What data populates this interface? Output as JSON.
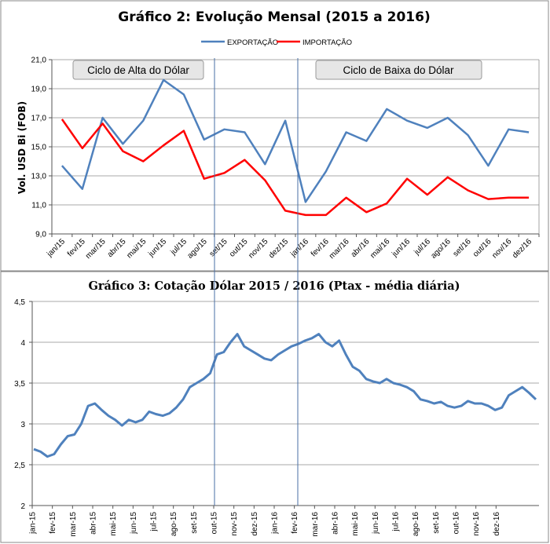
{
  "chart_data": [
    {
      "type": "line",
      "title": "Gráfico 2: Evolução Mensal (2015 a 2016)",
      "ylabel": "Vol. USD Bi (FOB)",
      "ylim": [
        9,
        21
      ],
      "yticks": [
        "9,0",
        "11,0",
        "13,0",
        "15,0",
        "17,0",
        "19,0",
        "21,0"
      ],
      "categories": [
        "jan/15",
        "fev/15",
        "mar/15",
        "abr/15",
        "mai/15",
        "jun/15",
        "jul/15",
        "ago/15",
        "set/15",
        "out/15",
        "nov/15",
        "dez/15",
        "jan/16",
        "fev/16",
        "mar/16",
        "abr/16",
        "mai/16",
        "jun/16",
        "jul/16",
        "ago/16",
        "set/16",
        "out/16",
        "nov/16",
        "dez/16"
      ],
      "series": [
        {
          "name": "EXPORTAÇÃO",
          "color": "#4f81bd",
          "values": [
            13.7,
            12.1,
            17.0,
            15.2,
            16.8,
            19.6,
            18.6,
            15.5,
            16.2,
            16.0,
            13.8,
            16.8,
            11.2,
            13.3,
            16.0,
            15.4,
            17.6,
            16.8,
            16.3,
            17.0,
            15.8,
            13.7,
            16.2,
            16.0
          ]
        },
        {
          "name": "IMPORTAÇÃO",
          "color": "#ff0000",
          "values": [
            16.9,
            14.9,
            16.6,
            14.7,
            14.0,
            15.1,
            16.1,
            12.8,
            13.2,
            14.1,
            12.7,
            10.6,
            10.3,
            10.3,
            11.5,
            10.5,
            11.1,
            12.8,
            11.7,
            12.9,
            12.0,
            11.4,
            11.5,
            11.5
          ]
        }
      ],
      "annotations": [
        "Ciclo de Alta do Dólar",
        "Ciclo de Baixa do Dólar"
      ],
      "legend": "top-center",
      "grid": true
    },
    {
      "type": "line",
      "title": "Gráfico 3: Cotação Dólar 2015 / 2016 (Ptax - média diária)",
      "ylim": [
        2,
        4.5
      ],
      "yticks": [
        "2",
        "2,5",
        "3",
        "3,5",
        "4",
        "4,5"
      ],
      "x_labels": [
        "jan-15",
        "fev-15",
        "mar-15",
        "abr-15",
        "mai-15",
        "jun-15",
        "jul-15",
        "ago-15",
        "set-15",
        "out-15",
        "nov-15",
        "dez-15",
        "jan-16",
        "fev-16",
        "mar-16",
        "abr-16",
        "mai-16",
        "jun-16",
        "jul-16",
        "ago-16",
        "set-16",
        "out-16",
        "nov-16",
        "dez-16"
      ],
      "series": [
        {
          "name": "",
          "color": "#4f81bd",
          "values": [
            2.69,
            2.66,
            2.6,
            2.63,
            2.75,
            2.85,
            2.87,
            3.0,
            3.22,
            3.25,
            3.17,
            3.1,
            3.05,
            2.98,
            3.05,
            3.02,
            3.05,
            3.15,
            3.12,
            3.1,
            3.13,
            3.2,
            3.3,
            3.45,
            3.5,
            3.55,
            3.62,
            3.85,
            3.88,
            4.0,
            4.1,
            3.95,
            3.9,
            3.85,
            3.8,
            3.78,
            3.85,
            3.9,
            3.95,
            3.98,
            4.02,
            4.05,
            4.1,
            4.0,
            3.95,
            4.02,
            3.85,
            3.7,
            3.65,
            3.55,
            3.52,
            3.5,
            3.55,
            3.5,
            3.48,
            3.45,
            3.4,
            3.3,
            3.28,
            3.25,
            3.27,
            3.22,
            3.2,
            3.22,
            3.28,
            3.25,
            3.25,
            3.22,
            3.17,
            3.2,
            3.35,
            3.4,
            3.45,
            3.38,
            3.3
          ]
        }
      ],
      "grid": true
    }
  ]
}
